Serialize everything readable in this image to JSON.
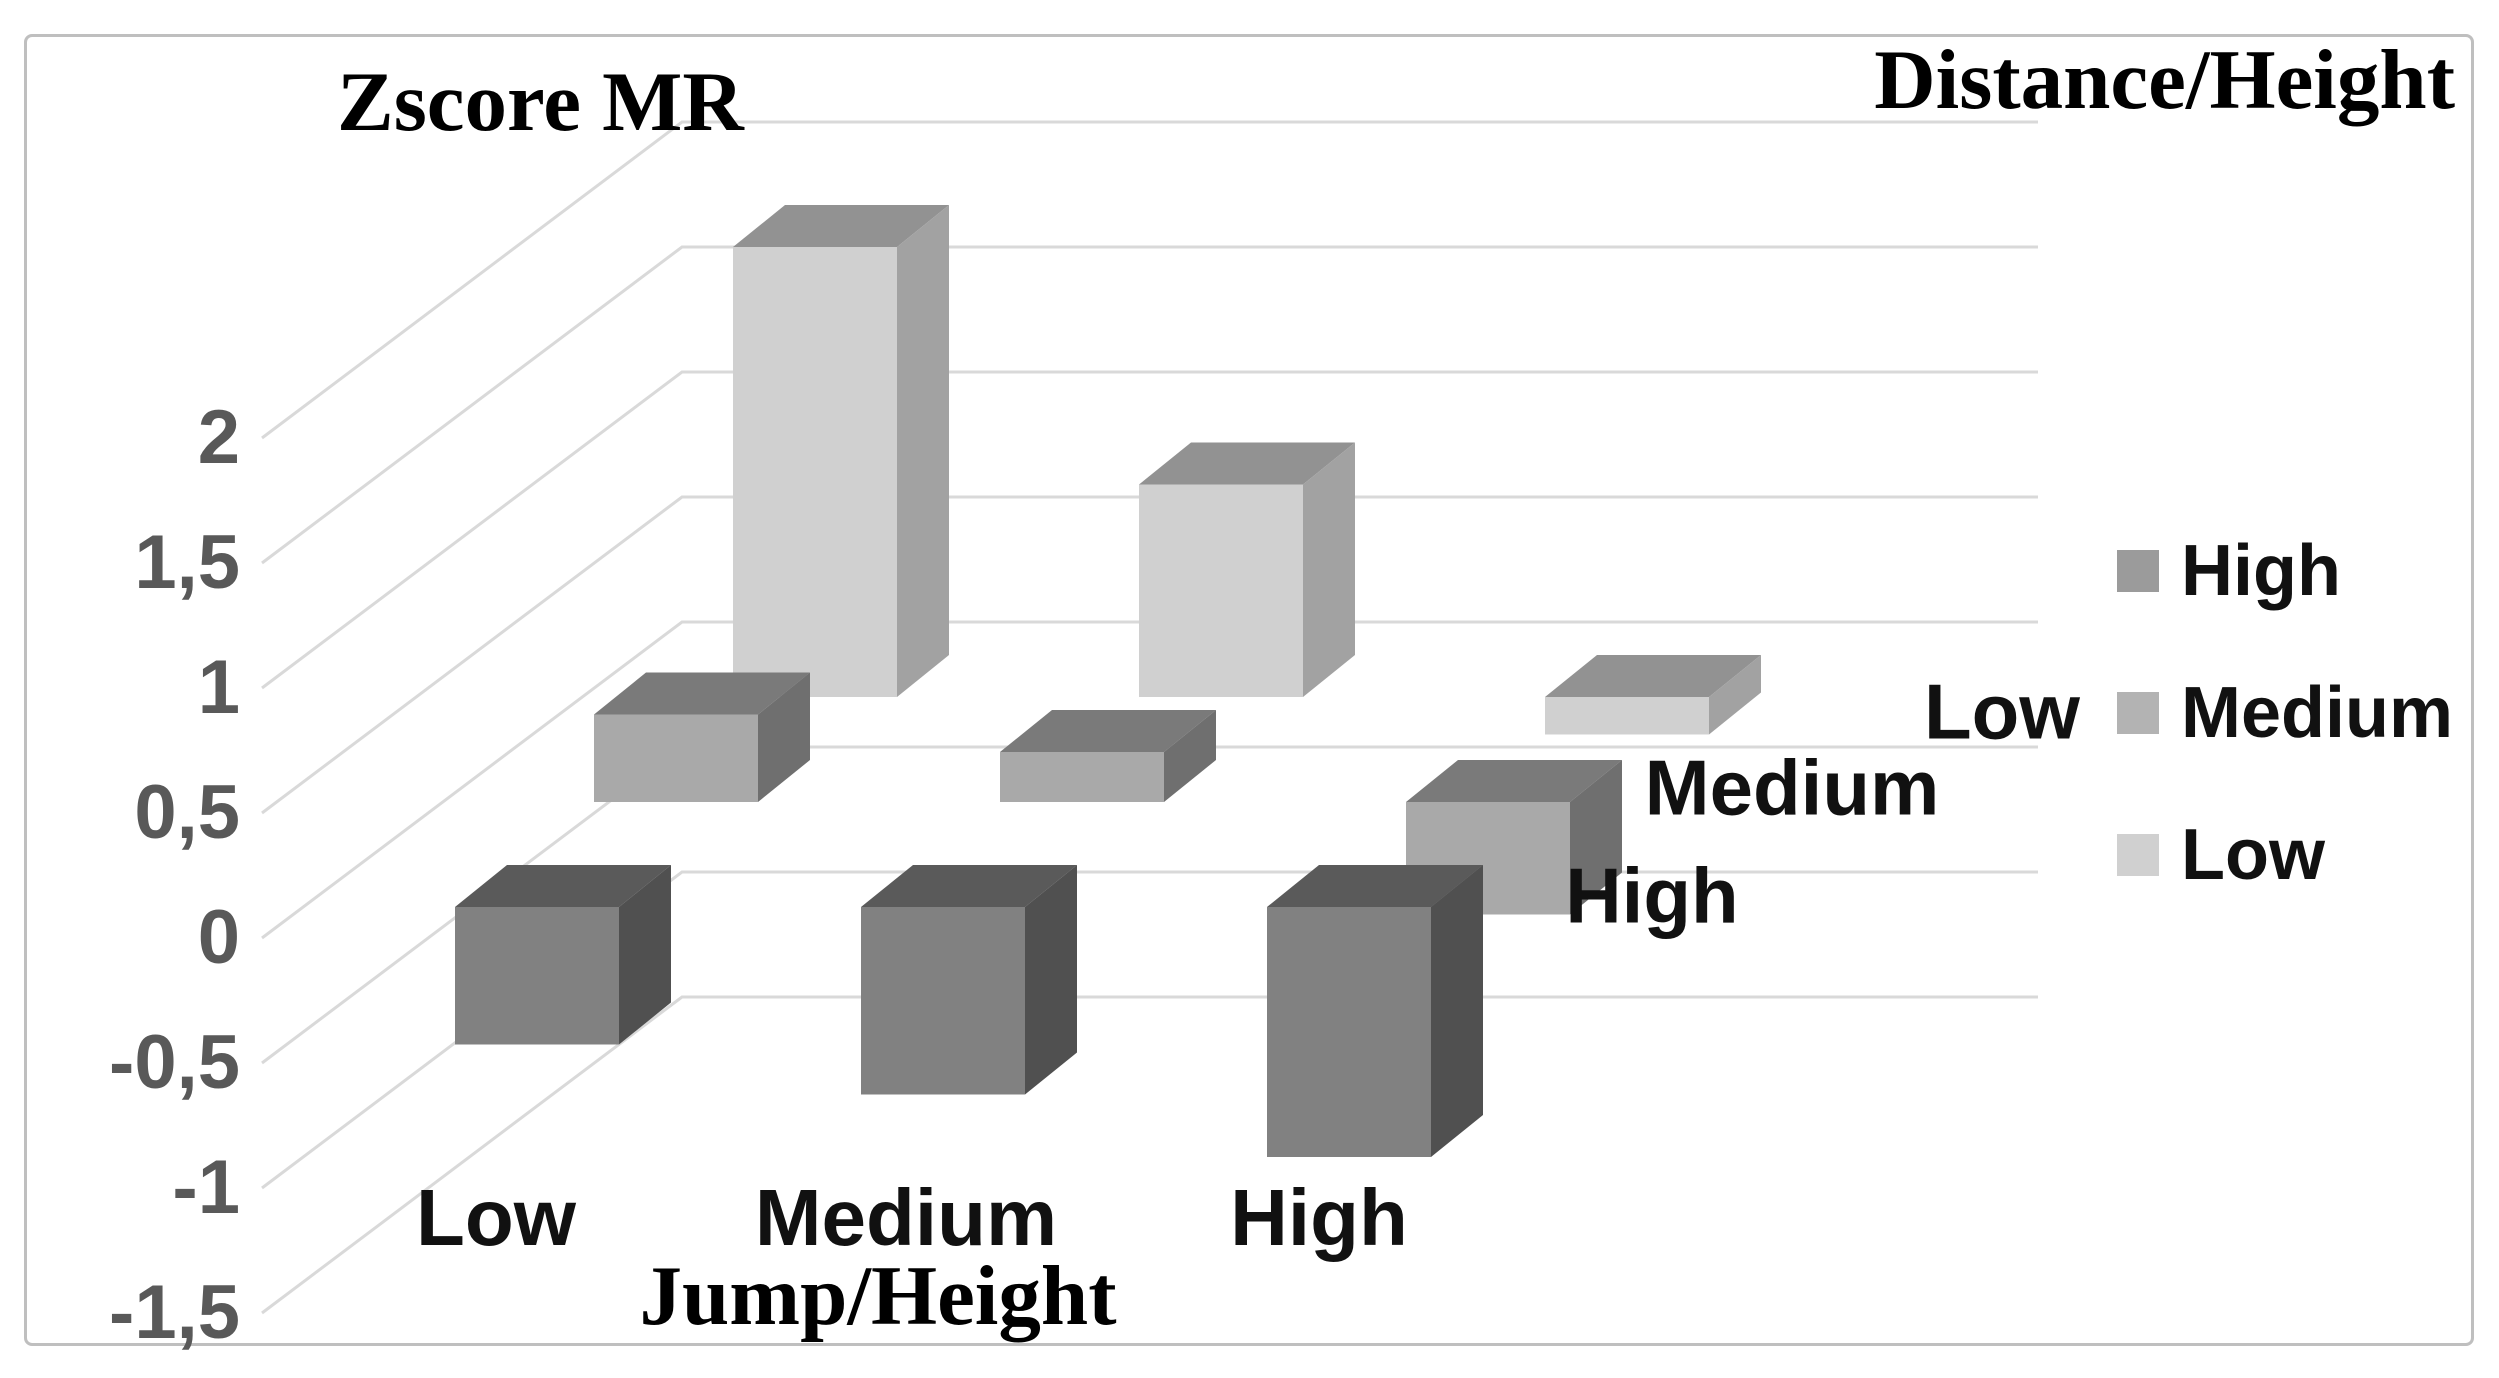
{
  "chart_data": {
    "type": "bar",
    "style": "3d-column",
    "title": "Zscore MR",
    "xlabel": "Jump/Height",
    "depth_axis_title": "Distance/Height",
    "categories": [
      "Low",
      "Medium",
      "High"
    ],
    "series": [
      {
        "name": "High",
        "values": [
          -0.55,
          -0.75,
          -1.0
        ],
        "face": "#818181",
        "top": "#5a5a5a",
        "side": "#505050",
        "swatch": "#9b9b9b"
      },
      {
        "name": "Medium",
        "values": [
          0.35,
          0.2,
          -0.45
        ],
        "face": "#a9a9a9",
        "top": "#7a7a7a",
        "side": "#6f6f6f",
        "swatch": "#b3b3b3"
      },
      {
        "name": "Low",
        "values": [
          1.8,
          0.85,
          -0.15
        ],
        "face": "#d0d0d0",
        "top": "#929292",
        "side": "#a2a2a2",
        "swatch": "#d0d0d0"
      }
    ],
    "yticks": [
      "2",
      "1,5",
      "1",
      "0,5",
      "0",
      "-0,5",
      "-1",
      "-1,5"
    ],
    "ytick_values": [
      2,
      1.5,
      1,
      0.5,
      0,
      -0.5,
      -1,
      -1.5
    ],
    "ylim": [
      -1.5,
      2.5
    ],
    "grid": true,
    "legend_position": "right",
    "decimal_separator": ",",
    "colors": {
      "gridline": "#d9d9d9",
      "chart_border": "#bfbfbf",
      "tick_text": "#595959",
      "label_text": "#111111",
      "title_text": "#000000",
      "background": "#ffffff"
    }
  }
}
